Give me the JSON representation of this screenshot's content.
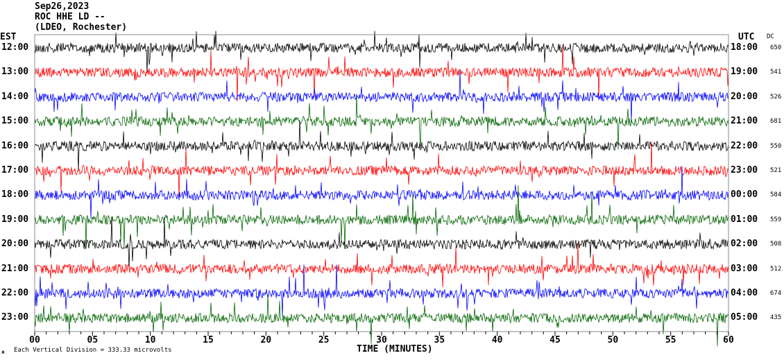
{
  "header": {
    "date": "Sep26,2023",
    "station": "ROC HHE LD --",
    "location": "(LDEO, Rochester)"
  },
  "left_axis_title": "EST",
  "right_axis_title": "UTC",
  "dc_title": "DC",
  "footer": {
    "logo_glyph": "ж",
    "scale_note": "Each Vertical Division =  333.33 microvolts"
  },
  "chart_data": {
    "type": "line",
    "subtype": "helicorder",
    "xlabel": "TIME (MINUTES)",
    "xlim": [
      0,
      60
    ],
    "x_ticks": [
      "00",
      "05",
      "10",
      "15",
      "20",
      "25",
      "30",
      "35",
      "40",
      "45",
      "50",
      "55",
      "60"
    ],
    "trace_colors": [
      "#000000",
      "#ff0000",
      "#0000ff",
      "#006400"
    ],
    "rows": [
      {
        "est": "12:00",
        "utc": "18:00",
        "dc": "650",
        "color": "#000000"
      },
      {
        "est": "13:00",
        "utc": "19:00",
        "dc": "541",
        "color": "#ff0000"
      },
      {
        "est": "14:00",
        "utc": "20:00",
        "dc": "526",
        "color": "#0000ff"
      },
      {
        "est": "15:00",
        "utc": "21:00",
        "dc": "681",
        "color": "#006400"
      },
      {
        "est": "16:00",
        "utc": "22:00",
        "dc": "550",
        "color": "#000000"
      },
      {
        "est": "17:00",
        "utc": "23:00",
        "dc": "521",
        "color": "#ff0000"
      },
      {
        "est": "18:00",
        "utc": "00:00",
        "dc": "584",
        "color": "#0000ff"
      },
      {
        "est": "19:00",
        "utc": "01:00",
        "dc": "559",
        "color": "#006400"
      },
      {
        "est": "20:00",
        "utc": "02:00",
        "dc": "508",
        "color": "#000000"
      },
      {
        "est": "21:00",
        "utc": "03:00",
        "dc": "512",
        "color": "#ff0000"
      },
      {
        "est": "22:00",
        "utc": "04:00",
        "dc": "674",
        "color": "#0000ff"
      },
      {
        "est": "23:00",
        "utc": "05:00",
        "dc": "435",
        "color": "#006400"
      }
    ]
  }
}
